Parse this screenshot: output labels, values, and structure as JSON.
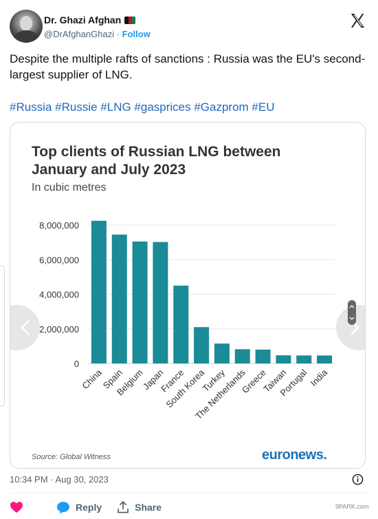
{
  "tweet": {
    "author_name": "Dr. Ghazi Afghan",
    "handle": "@DrAfghanGhazi",
    "separator": "·",
    "follow_label": "Follow",
    "text": "Despite the multiple rafts of sanctions : Russia was the EU's second-largest supplier of LNG.",
    "hashtags": "#Russia #Russie #LNG #gasprices #Gazprom #EU",
    "timestamp": "10:34 PM · Aug 30, 2023",
    "reply_label": "Reply",
    "share_label": "Share"
  },
  "card": {
    "source": "Source: Global Witness",
    "brand": "euronews."
  },
  "watermark": "9PARK.com",
  "colors": {
    "bar": "#1a8b97",
    "link": "#1d68bf",
    "brand": "#1a73b8",
    "like": "#f91880"
  },
  "chart_data": {
    "type": "bar",
    "title": "Top clients of Russian LNG between January and July 2023",
    "subtitle": "In cubic metres",
    "categories": [
      "China",
      "Spain",
      "Belgium",
      "Japan",
      "France",
      "South Korea",
      "Turkey",
      "The Netherlands",
      "Greece",
      "Taiwan",
      "Portugal",
      "India"
    ],
    "values": [
      8250000,
      7450000,
      7050000,
      7020000,
      4500000,
      2100000,
      1150000,
      820000,
      800000,
      470000,
      460000,
      460000
    ],
    "yticks": [
      "0",
      "2,000,000",
      "4,000,000",
      "6,000,000",
      "8,000,000"
    ],
    "ylim": [
      0,
      8000000
    ],
    "grid": true,
    "legend": "none"
  }
}
